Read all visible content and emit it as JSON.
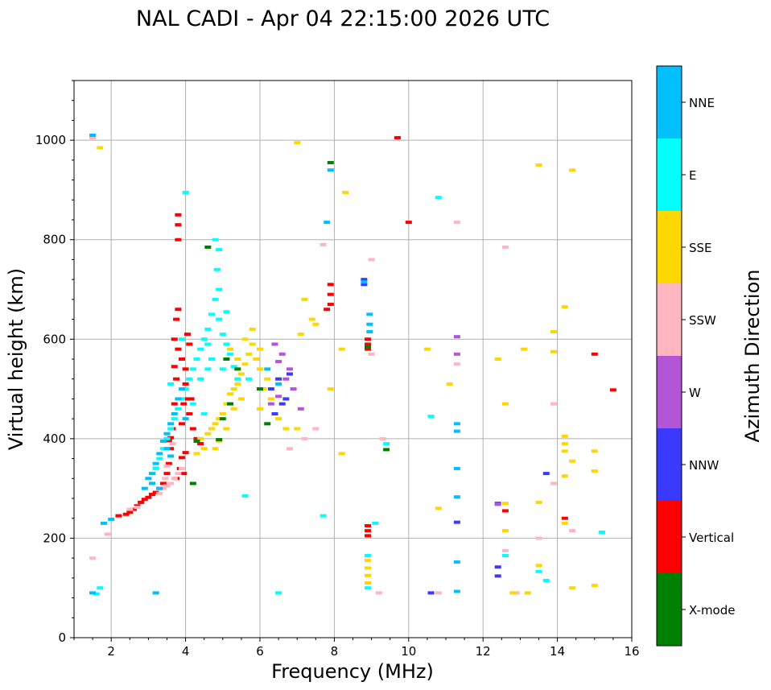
{
  "chart_data": {
    "type": "scatter",
    "title": "NAL CADI - Apr 04 22:15:00 2026 UTC",
    "xlabel": "Frequency (MHz)",
    "ylabel": "Virtual height (km)",
    "xlim": [
      1,
      16
    ],
    "ylim": [
      0,
      1120
    ],
    "x_ticks": [
      2,
      4,
      6,
      8,
      10,
      12,
      14,
      16
    ],
    "y_ticks": [
      0,
      200,
      400,
      600,
      800,
      1000
    ],
    "grid": true,
    "colorbar": {
      "label": "Azimuth Direction",
      "categories": [
        "X-mode",
        "Vertical",
        "NNW",
        "W",
        "SSW",
        "SSE",
        "E",
        "NNE"
      ],
      "colors": [
        "#008000",
        "#ff0000",
        "#3a3aff",
        "#b455d8",
        "#ffb6c1",
        "#ffd700",
        "#00ffff",
        "#00bfff"
      ]
    },
    "series": [
      {
        "name": "Vertical",
        "color": "#ff0000",
        "points": [
          [
            2.2,
            245
          ],
          [
            2.4,
            248
          ],
          [
            2.5,
            252
          ],
          [
            2.6,
            258
          ],
          [
            2.7,
            265
          ],
          [
            2.8,
            272
          ],
          [
            2.9,
            278
          ],
          [
            3.0,
            282
          ],
          [
            3.1,
            288
          ],
          [
            3.2,
            292
          ],
          [
            3.3,
            300
          ],
          [
            3.4,
            310
          ],
          [
            3.5,
            330
          ],
          [
            3.55,
            350
          ],
          [
            3.6,
            380
          ],
          [
            3.65,
            420
          ],
          [
            3.7,
            470
          ],
          [
            3.75,
            520
          ],
          [
            3.8,
            580
          ],
          [
            3.7,
            600
          ],
          [
            3.75,
            640
          ],
          [
            3.8,
            660
          ],
          [
            3.8,
            800
          ],
          [
            3.8,
            830
          ],
          [
            3.8,
            850
          ],
          [
            3.9,
            560
          ],
          [
            4.0,
            540
          ],
          [
            4.0,
            480
          ],
          [
            4.1,
            450
          ],
          [
            4.2,
            420
          ],
          [
            4.3,
            400
          ],
          [
            4.4,
            390
          ],
          [
            4.0,
            510
          ],
          [
            4.1,
            590
          ],
          [
            4.05,
            610
          ],
          [
            3.9,
            430
          ],
          [
            3.95,
            470
          ],
          [
            3.85,
            340
          ],
          [
            3.75,
            320
          ],
          [
            3.95,
            330
          ],
          [
            3.9,
            362
          ],
          [
            4.0,
            372
          ],
          [
            3.7,
            545
          ],
          [
            3.6,
            402
          ],
          [
            3.55,
            396
          ],
          [
            4.15,
            480
          ],
          [
            7.8,
            660
          ],
          [
            7.9,
            670
          ],
          [
            7.9,
            690
          ],
          [
            7.9,
            710
          ],
          [
            8.9,
            580
          ],
          [
            8.9,
            600
          ],
          [
            8.9,
            590
          ],
          [
            8.9,
            205
          ],
          [
            8.9,
            215
          ],
          [
            8.9,
            225
          ],
          [
            10.0,
            835
          ],
          [
            9.7,
            1005
          ],
          [
            12.6,
            255
          ],
          [
            14.2,
            240
          ],
          [
            15.0,
            570
          ],
          [
            15.5,
            498
          ]
        ]
      },
      {
        "name": "NNW",
        "color": "#3a3aff",
        "points": [
          [
            6.5,
            520
          ],
          [
            6.7,
            480
          ],
          [
            6.4,
            450
          ],
          [
            8.8,
            720
          ],
          [
            8.8,
            710
          ],
          [
            11.3,
            232
          ],
          [
            12.4,
            142
          ],
          [
            12.4,
            124
          ],
          [
            12.4,
            270
          ],
          [
            13.7,
            330
          ],
          [
            10.6,
            90
          ],
          [
            6.3,
            500
          ],
          [
            6.8,
            530
          ],
          [
            6.6,
            470
          ]
        ]
      },
      {
        "name": "W",
        "color": "#b455d8",
        "points": [
          [
            6.4,
            590
          ],
          [
            6.6,
            570
          ],
          [
            6.8,
            540
          ],
          [
            6.7,
            520
          ],
          [
            6.5,
            485
          ],
          [
            6.9,
            500
          ],
          [
            7.1,
            460
          ],
          [
            11.3,
            605
          ],
          [
            11.3,
            570
          ],
          [
            12.4,
            268
          ],
          [
            6.3,
            470
          ],
          [
            6.5,
            555
          ]
        ]
      },
      {
        "name": "SSW",
        "color": "#ffb6c1",
        "points": [
          [
            2.5,
            258
          ],
          [
            2.7,
            262
          ],
          [
            3.3,
            290
          ],
          [
            3.4,
            300
          ],
          [
            3.5,
            305
          ],
          [
            3.6,
            310
          ],
          [
            3.7,
            320
          ],
          [
            3.8,
            330
          ],
          [
            3.9,
            340
          ],
          [
            3.5,
            345
          ],
          [
            3.45,
            320
          ],
          [
            1.9,
            208
          ],
          [
            1.5,
            160
          ],
          [
            1.5,
            1005
          ],
          [
            6.8,
            380
          ],
          [
            7.2,
            400
          ],
          [
            7.5,
            420
          ],
          [
            7.7,
            790
          ],
          [
            9.0,
            570
          ],
          [
            9.0,
            760
          ],
          [
            11.3,
            835
          ],
          [
            11.3,
            550
          ],
          [
            12.6,
            785
          ],
          [
            12.6,
            175
          ],
          [
            13.5,
            200
          ],
          [
            13.9,
            470
          ],
          [
            13.9,
            310
          ],
          [
            14.4,
            215
          ],
          [
            9.3,
            400
          ],
          [
            9.2,
            90
          ],
          [
            10.8,
            90
          ],
          [
            12.9,
            90
          ],
          [
            3.65,
            390
          ],
          [
            3.2,
            342
          ]
        ]
      },
      {
        "name": "SSE",
        "color": "#ffd700",
        "points": [
          [
            4.4,
            400
          ],
          [
            4.6,
            410
          ],
          [
            4.7,
            420
          ],
          [
            4.8,
            430
          ],
          [
            4.9,
            440
          ],
          [
            5.0,
            450
          ],
          [
            5.1,
            470
          ],
          [
            5.2,
            490
          ],
          [
            5.3,
            500
          ],
          [
            5.4,
            510
          ],
          [
            5.5,
            530
          ],
          [
            5.6,
            550
          ],
          [
            5.7,
            570
          ],
          [
            5.8,
            590
          ],
          [
            5.9,
            560
          ],
          [
            6.0,
            540
          ],
          [
            5.5,
            480
          ],
          [
            5.3,
            460
          ],
          [
            5.1,
            420
          ],
          [
            4.9,
            395
          ],
          [
            4.5,
            380
          ],
          [
            4.3,
            370
          ],
          [
            5.6,
            600
          ],
          [
            5.8,
            620
          ],
          [
            6.0,
            580
          ],
          [
            6.2,
            520
          ],
          [
            6.3,
            480
          ],
          [
            6.5,
            440
          ],
          [
            6.7,
            420
          ],
          [
            7.0,
            420
          ],
          [
            7.1,
            610
          ],
          [
            7.2,
            680
          ],
          [
            7.4,
            640
          ],
          [
            7.5,
            630
          ],
          [
            7.9,
            500
          ],
          [
            8.2,
            370
          ],
          [
            8.2,
            580
          ],
          [
            8.3,
            895
          ],
          [
            8.9,
            110
          ],
          [
            8.9,
            125
          ],
          [
            8.9,
            140
          ],
          [
            8.9,
            155
          ],
          [
            7.0,
            995
          ],
          [
            10.5,
            580
          ],
          [
            10.8,
            260
          ],
          [
            11.1,
            510
          ],
          [
            12.4,
            560
          ],
          [
            12.6,
            470
          ],
          [
            12.6,
            270
          ],
          [
            12.6,
            215
          ],
          [
            13.1,
            580
          ],
          [
            13.5,
            950
          ],
          [
            13.5,
            272
          ],
          [
            13.5,
            145
          ],
          [
            13.9,
            615
          ],
          [
            13.9,
            575
          ],
          [
            14.2,
            665
          ],
          [
            14.2,
            405
          ],
          [
            14.2,
            390
          ],
          [
            14.2,
            375
          ],
          [
            14.2,
            325
          ],
          [
            14.2,
            230
          ],
          [
            14.4,
            940
          ],
          [
            14.4,
            355
          ],
          [
            15.0,
            335
          ],
          [
            15.0,
            375
          ],
          [
            14.4,
            100
          ],
          [
            15.0,
            105
          ],
          [
            13.2,
            90
          ],
          [
            12.8,
            90
          ],
          [
            6.1,
            500
          ],
          [
            5.2,
            580
          ],
          [
            4.8,
            380
          ],
          [
            5.4,
            560
          ],
          [
            6.0,
            460
          ],
          [
            1.7,
            985
          ]
        ]
      },
      {
        "name": "E",
        "color": "#00ffff",
        "points": [
          [
            4.8,
            800
          ],
          [
            4.9,
            780
          ],
          [
            4.85,
            740
          ],
          [
            4.9,
            700
          ],
          [
            4.8,
            680
          ],
          [
            4.7,
            650
          ],
          [
            4.6,
            620
          ],
          [
            4.5,
            600
          ],
          [
            4.4,
            580
          ],
          [
            4.3,
            560
          ],
          [
            4.2,
            540
          ],
          [
            4.1,
            520
          ],
          [
            4.0,
            500
          ],
          [
            3.9,
            480
          ],
          [
            3.8,
            460
          ],
          [
            3.7,
            440
          ],
          [
            3.6,
            420
          ],
          [
            3.5,
            400
          ],
          [
            3.4,
            380
          ],
          [
            3.3,
            360
          ],
          [
            3.2,
            340
          ],
          [
            5.0,
            610
          ],
          [
            5.2,
            570
          ],
          [
            5.1,
            590
          ],
          [
            5.3,
            545
          ],
          [
            4.6,
            590
          ],
          [
            4.4,
            520
          ],
          [
            4.2,
            470
          ],
          [
            4.9,
            640
          ],
          [
            4.7,
            560
          ],
          [
            4.6,
            540
          ],
          [
            5.0,
            540
          ],
          [
            5.4,
            520
          ],
          [
            5.1,
            655
          ],
          [
            3.9,
            600
          ],
          [
            3.6,
            510
          ],
          [
            4.0,
            895
          ],
          [
            5.6,
            285
          ],
          [
            6.5,
            90
          ],
          [
            7.7,
            245
          ],
          [
            9.1,
            230
          ],
          [
            9.4,
            390
          ],
          [
            10.6,
            445
          ],
          [
            10.8,
            885
          ],
          [
            12.6,
            165
          ],
          [
            13.5,
            133
          ],
          [
            13.7,
            115
          ],
          [
            15.2,
            212
          ],
          [
            1.7,
            100
          ],
          [
            1.6,
            88
          ],
          [
            8.9,
            100
          ],
          [
            8.9,
            165
          ],
          [
            5.7,
            520
          ],
          [
            4.5,
            450
          ]
        ]
      },
      {
        "name": "NNE",
        "color": "#00bfff",
        "points": [
          [
            3.0,
            320
          ],
          [
            3.1,
            330
          ],
          [
            3.2,
            350
          ],
          [
            3.3,
            370
          ],
          [
            3.4,
            395
          ],
          [
            3.5,
            410
          ],
          [
            3.6,
            430
          ],
          [
            3.7,
            450
          ],
          [
            3.8,
            480
          ],
          [
            3.9,
            500
          ],
          [
            3.5,
            380
          ],
          [
            3.6,
            365
          ],
          [
            2.9,
            300
          ],
          [
            3.1,
            310
          ],
          [
            4.0,
            440
          ],
          [
            1.8,
            230
          ],
          [
            1.5,
            90
          ],
          [
            7.8,
            835
          ],
          [
            7.9,
            940
          ],
          [
            8.8,
            715
          ],
          [
            8.95,
            650
          ],
          [
            8.95,
            630
          ],
          [
            8.95,
            615
          ],
          [
            11.3,
            430
          ],
          [
            11.3,
            415
          ],
          [
            11.3,
            340
          ],
          [
            11.3,
            283
          ],
          [
            11.3,
            152
          ],
          [
            11.3,
            93
          ],
          [
            3.2,
            90
          ],
          [
            6.2,
            540
          ],
          [
            6.5,
            510
          ],
          [
            1.5,
            1010
          ],
          [
            2.0,
            238
          ],
          [
            3.3,
            300
          ]
        ]
      },
      {
        "name": "X-mode",
        "color": "#008000",
        "points": [
          [
            4.6,
            785
          ],
          [
            4.2,
            310
          ],
          [
            5.2,
            470
          ],
          [
            5.1,
            560
          ],
          [
            5.0,
            440
          ],
          [
            6.0,
            500
          ],
          [
            6.2,
            430
          ],
          [
            7.9,
            955
          ],
          [
            8.9,
            585
          ],
          [
            9.4,
            378
          ],
          [
            4.9,
            398
          ],
          [
            4.3,
            395
          ],
          [
            5.4,
            540
          ]
        ]
      }
    ]
  }
}
